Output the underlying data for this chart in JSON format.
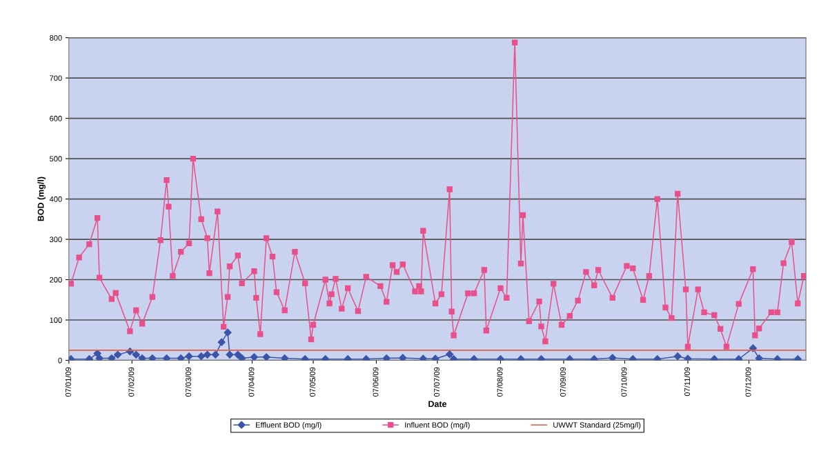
{
  "chart_data": {
    "type": "line",
    "xlabel": "Date",
    "ylabel": "BOD (mg/l)",
    "xlim": [
      "2009-01-07",
      "2010-01-04"
    ],
    "xticks": [
      {
        "value": "2009-01-07",
        "label": "07/01/09"
      },
      {
        "value": "2009-02-07",
        "label": "07/02/09"
      },
      {
        "value": "2009-03-07",
        "label": "07/03/09"
      },
      {
        "value": "2009-04-07",
        "label": "07/04/09"
      },
      {
        "value": "2009-05-07",
        "label": "07/05/09"
      },
      {
        "value": "2009-06-07",
        "label": "07/06/09"
      },
      {
        "value": "2009-07-07",
        "label": "07/07/09"
      },
      {
        "value": "2009-08-07",
        "label": "07/08/09"
      },
      {
        "value": "2009-09-07",
        "label": "07/09/09"
      },
      {
        "value": "2009-10-07",
        "label": "07/10/09"
      },
      {
        "value": "2009-11-07",
        "label": "07/11/09"
      },
      {
        "value": "2009-12-07",
        "label": "07/12/09"
      }
    ],
    "ylim": [
      0,
      800
    ],
    "yticks": [
      0,
      100,
      200,
      300,
      400,
      500,
      600,
      700,
      800
    ],
    "grid": "y",
    "legend": "bottom",
    "series": [
      {
        "name": "Effluent BOD (mg/l)",
        "color": "#3a55a8",
        "marker": "diamond",
        "x": [
          "2009-01-08",
          "2009-01-17",
          "2009-01-21",
          "2009-01-22",
          "2009-01-28",
          "2009-01-31",
          "2009-02-06",
          "2009-02-09",
          "2009-02-12",
          "2009-02-17",
          "2009-02-24",
          "2009-03-03",
          "2009-03-07",
          "2009-03-13",
          "2009-03-16",
          "2009-03-20",
          "2009-03-23",
          "2009-03-26",
          "2009-03-27",
          "2009-03-31",
          "2009-04-02",
          "2009-04-08",
          "2009-04-14",
          "2009-04-23",
          "2009-05-03",
          "2009-05-13",
          "2009-05-24",
          "2009-06-02",
          "2009-06-12",
          "2009-06-20",
          "2009-06-30",
          "2009-07-06",
          "2009-07-13",
          "2009-07-15",
          "2009-07-25",
          "2009-08-07",
          "2009-08-17",
          "2009-08-27",
          "2009-09-10",
          "2009-09-22",
          "2009-10-01",
          "2009-10-11",
          "2009-10-23",
          "2009-11-02",
          "2009-11-07",
          "2009-11-20",
          "2009-12-02",
          "2009-12-09",
          "2009-12-12",
          "2009-12-21",
          "2009-12-31"
        ],
        "values": [
          3,
          3,
          17,
          5,
          5,
          14,
          22,
          14,
          5,
          5,
          5,
          5,
          10,
          10,
          14,
          14,
          45,
          69,
          14,
          14,
          5,
          8,
          8,
          5,
          3,
          3,
          3,
          3,
          5,
          6,
          4,
          4,
          15,
          3,
          3,
          3,
          3,
          3,
          3,
          3,
          6,
          3,
          3,
          10,
          4,
          3,
          3,
          30,
          5,
          3,
          3
        ]
      },
      {
        "name": "Influent BOD (mg/l)",
        "color": "#e8508c",
        "marker": "square",
        "x": [
          "2009-01-08",
          "2009-01-12",
          "2009-01-17",
          "2009-01-21",
          "2009-01-22",
          "2009-01-28",
          "2009-01-30",
          "2009-02-06",
          "2009-02-09",
          "2009-02-12",
          "2009-02-17",
          "2009-02-21",
          "2009-02-24",
          "2009-02-25",
          "2009-02-27",
          "2009-03-03",
          "2009-03-07",
          "2009-03-09",
          "2009-03-13",
          "2009-03-16",
          "2009-03-17",
          "2009-03-21",
          "2009-03-24",
          "2009-03-26",
          "2009-03-27",
          "2009-03-31",
          "2009-04-02",
          "2009-04-08",
          "2009-04-09",
          "2009-04-11",
          "2009-04-14",
          "2009-04-17",
          "2009-04-19",
          "2009-04-23",
          "2009-04-28",
          "2009-05-03",
          "2009-05-06",
          "2009-05-07",
          "2009-05-13",
          "2009-05-15",
          "2009-05-16",
          "2009-05-18",
          "2009-05-21",
          "2009-05-24",
          "2009-05-29",
          "2009-06-02",
          "2009-06-09",
          "2009-06-12",
          "2009-06-15",
          "2009-06-17",
          "2009-06-20",
          "2009-06-26",
          "2009-06-28",
          "2009-06-29",
          "2009-06-30",
          "2009-07-06",
          "2009-07-09",
          "2009-07-13",
          "2009-07-14",
          "2009-07-15",
          "2009-07-22",
          "2009-07-25",
          "2009-07-30",
          "2009-07-31",
          "2009-08-07",
          "2009-08-10",
          "2009-08-14",
          "2009-08-17",
          "2009-08-18",
          "2009-08-21",
          "2009-08-26",
          "2009-08-27",
          "2009-08-29",
          "2009-09-02",
          "2009-09-06",
          "2009-09-10",
          "2009-09-14",
          "2009-09-18",
          "2009-09-22",
          "2009-09-24",
          "2009-10-01",
          "2009-10-08",
          "2009-10-11",
          "2009-10-16",
          "2009-10-19",
          "2009-10-23",
          "2009-10-27",
          "2009-10-30",
          "2009-11-02",
          "2009-11-06",
          "2009-11-07",
          "2009-11-12",
          "2009-11-15",
          "2009-11-20",
          "2009-11-23",
          "2009-11-26",
          "2009-12-02",
          "2009-12-09",
          "2009-12-10",
          "2009-12-12",
          "2009-12-18",
          "2009-12-21",
          "2009-12-24",
          "2009-12-28",
          "2009-12-31",
          "2010-01-03"
        ],
        "values": [
          190,
          255,
          288,
          353,
          205,
          152,
          167,
          72,
          124,
          91,
          157,
          298,
          447,
          381,
          209,
          269,
          290,
          500,
          350,
          303,
          216,
          369,
          83,
          157,
          233,
          260,
          191,
          221,
          155,
          65,
          303,
          257,
          169,
          124,
          269,
          191,
          52,
          88,
          200,
          141,
          164,
          202,
          128,
          179,
          122,
          207,
          184,
          145,
          236,
          219,
          238,
          171,
          184,
          171,
          321,
          141,
          164,
          424,
          121,
          62,
          166,
          166,
          224,
          74,
          179,
          155,
          788,
          240,
          360,
          97,
          146,
          84,
          47,
          190,
          88,
          110,
          148,
          219,
          186,
          224,
          155,
          234,
          228,
          150,
          209,
          400,
          131,
          105,
          413,
          176,
          34,
          176,
          119,
          112,
          78,
          34,
          140,
          226,
          62,
          79,
          119,
          119,
          241,
          293,
          141,
          209
        ]
      },
      {
        "name": "UWWT Standard (25mg/l)",
        "color": "#d9604a",
        "marker": "none",
        "x": [
          "2009-01-07",
          "2010-01-04"
        ],
        "values": [
          25,
          25
        ]
      }
    ]
  }
}
